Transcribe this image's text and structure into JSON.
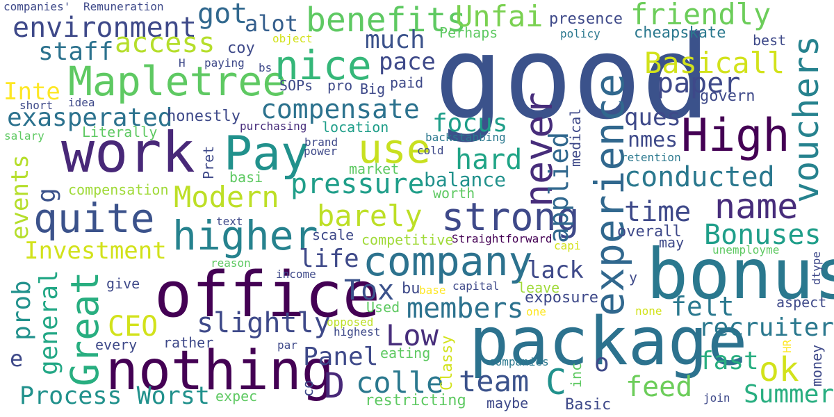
{
  "word_cloud": {
    "background": "#ffffff",
    "words": [
      {
        "text": "good",
        "color": "#3b528b"
      },
      {
        "text": "package",
        "color": "#2c728e"
      },
      {
        "text": "bonus",
        "color": "#2a788e"
      },
      {
        "text": "office",
        "color": "#440154"
      },
      {
        "text": "nothing",
        "color": "#440154"
      },
      {
        "text": "work",
        "color": "#482878"
      },
      {
        "text": "experience",
        "color": "#31688e"
      },
      {
        "text": "High",
        "color": "#440154"
      },
      {
        "text": "vouchers",
        "color": "#26828e"
      },
      {
        "text": "company",
        "color": "#2c728e"
      },
      {
        "text": "never",
        "color": "#472d7b"
      },
      {
        "text": "Pay",
        "color": "#21918c"
      },
      {
        "text": "Great",
        "color": "#28ae80"
      },
      {
        "text": "Mapletree",
        "color": "#5ec962"
      },
      {
        "text": "higher",
        "color": "#26828e"
      },
      {
        "text": "strong",
        "color": "#3e4989"
      },
      {
        "text": "quite",
        "color": "#3b528b"
      },
      {
        "text": "nice",
        "color": "#35b779"
      },
      {
        "text": "use",
        "color": "#c8e020"
      },
      {
        "text": "name",
        "color": "#472d7b"
      },
      {
        "text": "applied",
        "color": "#31688e"
      },
      {
        "text": "benefits",
        "color": "#5ec962"
      },
      {
        "text": "conducted",
        "color": "#2a788e"
      },
      {
        "text": "pressure",
        "color": "#1f9e89"
      },
      {
        "text": "slightly",
        "color": "#3e4989"
      },
      {
        "text": "Modern",
        "color": "#bddf26"
      },
      {
        "text": "barely",
        "color": "#bddf26"
      },
      {
        "text": "friendly",
        "color": "#6ccd5a"
      },
      {
        "text": "Unfai",
        "color": "#7ad151"
      },
      {
        "text": "environment",
        "color": "#3e4989"
      },
      {
        "text": "got",
        "color": "#31688e"
      },
      {
        "text": "Basicall",
        "color": "#d2e21b"
      },
      {
        "text": "compensate",
        "color": "#2c728e"
      },
      {
        "text": "access",
        "color": "#b5de2b"
      },
      {
        "text": "Bonuses",
        "color": "#1f9e89"
      },
      {
        "text": "team",
        "color": "#3b528b"
      },
      {
        "text": "colle",
        "color": "#2a788e"
      },
      {
        "text": "D",
        "color": "#482878"
      },
      {
        "text": "C",
        "color": "#21918c"
      },
      {
        "text": "ok",
        "color": "#d2e21b"
      },
      {
        "text": "Low",
        "color": "#472d7b"
      },
      {
        "text": "members",
        "color": "#2c728e"
      },
      {
        "text": "recruiter",
        "color": "#2a788e"
      },
      {
        "text": "time",
        "color": "#3e4989"
      },
      {
        "text": "paper",
        "color": "#3e4989"
      },
      {
        "text": "hard",
        "color": "#20a486"
      },
      {
        "text": "Process Worst",
        "color": "#21918c"
      },
      {
        "text": "exasperated",
        "color": "#2c728e"
      },
      {
        "text": "staff",
        "color": "#2c728e"
      },
      {
        "text": "much",
        "color": "#3b528b"
      },
      {
        "text": "alot",
        "color": "#355f8d"
      },
      {
        "text": "pace",
        "color": "#3e4989"
      },
      {
        "text": "ques",
        "color": "#3e4989"
      },
      {
        "text": "feed",
        "color": "#6ccd5a"
      },
      {
        "text": "fast",
        "color": "#28ae80"
      },
      {
        "text": "Summer",
        "color": "#28ae80"
      },
      {
        "text": "felt",
        "color": "#2a788e"
      },
      {
        "text": "Panel",
        "color": "#3e4989"
      },
      {
        "text": "lack",
        "color": "#3e4989"
      },
      {
        "text": "Tox",
        "color": "#3b528b"
      },
      {
        "text": "CEO",
        "color": "#d2e21b"
      },
      {
        "text": "Investment",
        "color": "#d2e21b"
      },
      {
        "text": "focus",
        "color": "#1f9e89"
      },
      {
        "text": "life",
        "color": "#3e4989"
      },
      {
        "text": "balance",
        "color": "#21918c"
      },
      {
        "text": "Inte",
        "color": "#fde725"
      },
      {
        "text": "nmes",
        "color": "#3e4989"
      },
      {
        "text": "general",
        "color": "#22a785"
      },
      {
        "text": "prob",
        "color": "#21918c"
      },
      {
        "text": "events",
        "color": "#b5de2b"
      },
      {
        "text": "g",
        "color": "#3b528b"
      },
      {
        "text": "e",
        "color": "#3e4989"
      },
      {
        "text": "o",
        "color": "#3e4989"
      },
      {
        "text": "honestly",
        "color": "#3e4989"
      },
      {
        "text": "Literally",
        "color": "#5ec962"
      },
      {
        "text": "compensation",
        "color": "#a0da39"
      },
      {
        "text": "location",
        "color": "#1f9e89"
      },
      {
        "text": "purchasing",
        "color": "#472d7b"
      },
      {
        "text": "presence",
        "color": "#3e4989"
      },
      {
        "text": "cheapskate",
        "color": "#2a788e"
      },
      {
        "text": "govern",
        "color": "#3e4989"
      },
      {
        "text": "Perhaps",
        "color": "#5ec962"
      },
      {
        "text": "coy",
        "color": "#3e4989"
      },
      {
        "text": "SOPs",
        "color": "#3e4989"
      },
      {
        "text": "pro",
        "color": "#3e4989"
      },
      {
        "text": "Big",
        "color": "#3e4989"
      },
      {
        "text": "paid",
        "color": "#3e4989"
      },
      {
        "text": "scale",
        "color": "#3e4989"
      },
      {
        "text": "competitive",
        "color": "#a0da39"
      },
      {
        "text": "Straightforward",
        "color": "#440154"
      },
      {
        "text": "overall",
        "color": "#3e4989"
      },
      {
        "text": "may",
        "color": "#3e4989"
      },
      {
        "text": "unemployme",
        "color": "#5ec962"
      },
      {
        "text": "dtype",
        "color": "#3e4989"
      },
      {
        "text": "aspect",
        "color": "#3e4989"
      },
      {
        "text": "exposure",
        "color": "#3e4989"
      },
      {
        "text": "leave",
        "color": "#a0da39"
      },
      {
        "text": "capital",
        "color": "#3e4989"
      },
      {
        "text": "base",
        "color": "#fde725"
      },
      {
        "text": "bu",
        "color": "#3e4989"
      },
      {
        "text": "Used",
        "color": "#5ec962"
      },
      {
        "text": "opposed",
        "color": "#bddf26"
      },
      {
        "text": "highest",
        "color": "#3e4989"
      },
      {
        "text": "eating",
        "color": "#5ec962"
      },
      {
        "text": "Classy",
        "color": "#d2e21b"
      },
      {
        "text": "companies",
        "color": "#2a788e"
      },
      {
        "text": "inc",
        "color": "#5ec962"
      },
      {
        "text": "money",
        "color": "#3e4989"
      },
      {
        "text": "HR",
        "color": "#fde725"
      },
      {
        "text": "restricting",
        "color": "#5ec962"
      },
      {
        "text": "maybe",
        "color": "#3e4989"
      },
      {
        "text": "Basic",
        "color": "#3e4989"
      },
      {
        "text": "join",
        "color": "#3e4989"
      },
      {
        "text": "expec",
        "color": "#5ec962"
      },
      {
        "text": "co",
        "color": "#3e4989"
      },
      {
        "text": "par",
        "color": "#3e4989"
      },
      {
        "text": "rather",
        "color": "#3e4989"
      },
      {
        "text": "every",
        "color": "#3e4989"
      },
      {
        "text": "give",
        "color": "#3e4989"
      },
      {
        "text": "income",
        "color": "#3e4989"
      },
      {
        "text": "reason",
        "color": "#5ec962"
      },
      {
        "text": "text",
        "color": "#3e4989"
      },
      {
        "text": "basi",
        "color": "#5ec962"
      },
      {
        "text": "Pret",
        "color": "#3e4989"
      },
      {
        "text": "market",
        "color": "#5ec962"
      },
      {
        "text": "worth",
        "color": "#5ec962"
      },
      {
        "text": "medical",
        "color": "#3e4989"
      },
      {
        "text": "retention",
        "color": "#2a788e"
      },
      {
        "text": "power",
        "color": "#3e4989"
      },
      {
        "text": "brand",
        "color": "#3e4989"
      },
      {
        "text": "cold",
        "color": "#3e4989"
      },
      {
        "text": "backstabbing",
        "color": "#2a788e"
      },
      {
        "text": "idea",
        "color": "#3e4989"
      },
      {
        "text": "short",
        "color": "#3e4989"
      },
      {
        "text": "salary",
        "color": "#5ec962"
      },
      {
        "text": "H",
        "color": "#3e4989"
      },
      {
        "text": "paying",
        "color": "#3e4989"
      },
      {
        "text": "bs",
        "color": "#3e4989"
      },
      {
        "text": "object",
        "color": "#d2e21b"
      },
      {
        "text": "companies'",
        "color": "#3e4989"
      },
      {
        "text": "Remuneration",
        "color": "#3e4989"
      },
      {
        "text": "policy",
        "color": "#2a788e"
      },
      {
        "text": "best",
        "color": "#3e4989"
      },
      {
        "text": "capi",
        "color": "#d2e21b"
      },
      {
        "text": "y",
        "color": "#3e4989"
      },
      {
        "text": "one",
        "color": "#fde725"
      },
      {
        "text": "none",
        "color": "#d2e21b"
      }
    ]
  }
}
